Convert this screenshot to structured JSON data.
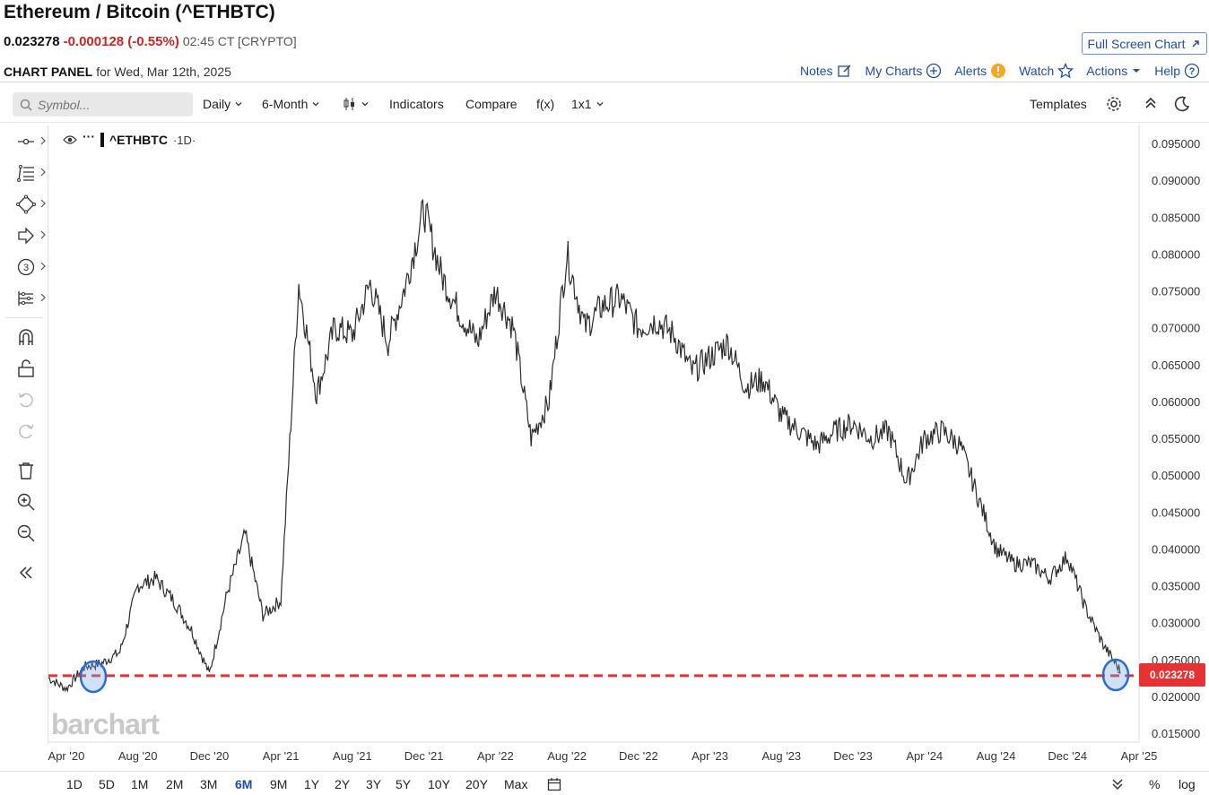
{
  "header": {
    "title": "Ethereum / Bitcoin (^ETHBTC)",
    "last": "0.023278",
    "change": "-0.000128 (-0.55%)",
    "time": "02:45 CT [CRYPTO]",
    "fullscreen_label": "Full Screen Chart",
    "panel_label": "CHART PANEL",
    "panel_date": "for Wed, Mar 12th, 2025"
  },
  "nav": [
    {
      "label": "Notes",
      "icon": "edit-icon"
    },
    {
      "label": "My Charts",
      "icon": "plus-circle-icon"
    },
    {
      "label": "Alerts",
      "icon": "alert-icon"
    },
    {
      "label": "Watch",
      "icon": "star-icon"
    },
    {
      "label": "Actions",
      "icon": "caret-down-icon"
    },
    {
      "label": "Help",
      "icon": "help-icon"
    }
  ],
  "toolbar": {
    "search_placeholder": "Symbol...",
    "interval": "Daily",
    "range": "6-Month",
    "indicators": "Indicators",
    "compare": "Compare",
    "fx": "f(x)",
    "layout": "1x1",
    "templates": "Templates"
  },
  "legend": {
    "symbol": "^ETHBTC",
    "interval": "·1D·"
  },
  "watermark": "barchart",
  "chart_data": {
    "type": "line",
    "symbol": "^ETHBTC",
    "interval": "1D",
    "ylim": [
      0.015,
      0.095
    ],
    "y_ticks": [
      "0.095000",
      "0.090000",
      "0.085000",
      "0.080000",
      "0.075000",
      "0.070000",
      "0.065000",
      "0.060000",
      "0.055000",
      "0.050000",
      "0.045000",
      "0.040000",
      "0.035000",
      "0.030000",
      "0.025000",
      "0.020000",
      "0.015000"
    ],
    "x_ticks": [
      "Apr '20",
      "Aug '20",
      "Dec '20",
      "Apr '21",
      "Aug '21",
      "Dec '21",
      "Apr '22",
      "Aug '22",
      "Dec '22",
      "Apr '23",
      "Aug '23",
      "Dec '23",
      "Apr '24",
      "Aug '24",
      "Dec '24",
      "Apr '25"
    ],
    "x": [
      "2020-03",
      "2020-04",
      "2020-05",
      "2020-06",
      "2020-07",
      "2020-08",
      "2020-09",
      "2020-10",
      "2020-11",
      "2020-12",
      "2021-01",
      "2021-02",
      "2021-03",
      "2021-04",
      "2021-05",
      "2021-06",
      "2021-07",
      "2021-08",
      "2021-09",
      "2021-10",
      "2021-11",
      "2021-12",
      "2022-01",
      "2022-02",
      "2022-03",
      "2022-04",
      "2022-05",
      "2022-06",
      "2022-07",
      "2022-08",
      "2022-09",
      "2022-10",
      "2022-11",
      "2022-12",
      "2023-01",
      "2023-02",
      "2023-03",
      "2023-04",
      "2023-05",
      "2023-06",
      "2023-07",
      "2023-08",
      "2023-09",
      "2023-10",
      "2023-11",
      "2023-12",
      "2024-01",
      "2024-02",
      "2024-03",
      "2024-04",
      "2024-05",
      "2024-06",
      "2024-07",
      "2024-08",
      "2024-09",
      "2024-10",
      "2024-11",
      "2024-12",
      "2025-01",
      "2025-02",
      "2025-03"
    ],
    "values": [
      0.0225,
      0.021,
      0.024,
      0.0245,
      0.026,
      0.035,
      0.036,
      0.033,
      0.029,
      0.023,
      0.034,
      0.042,
      0.031,
      0.033,
      0.076,
      0.061,
      0.07,
      0.069,
      0.076,
      0.068,
      0.076,
      0.086,
      0.077,
      0.072,
      0.068,
      0.075,
      0.07,
      0.055,
      0.06,
      0.08,
      0.07,
      0.073,
      0.074,
      0.07,
      0.071,
      0.069,
      0.064,
      0.066,
      0.068,
      0.062,
      0.063,
      0.058,
      0.056,
      0.054,
      0.056,
      0.057,
      0.055,
      0.056,
      0.049,
      0.055,
      0.056,
      0.054,
      0.047,
      0.04,
      0.038,
      0.038,
      0.036,
      0.039,
      0.032,
      0.027,
      0.0233
    ],
    "last_value": "0.023278",
    "reference_line": 0.0228
  },
  "periods": [
    "1D",
    "5D",
    "1M",
    "2M",
    "3M",
    "6M",
    "9M",
    "1Y",
    "2Y",
    "3Y",
    "5Y",
    "10Y",
    "20Y",
    "Max"
  ],
  "active_period": "6M",
  "bottom_right": {
    "percent": "%",
    "log": "log"
  }
}
